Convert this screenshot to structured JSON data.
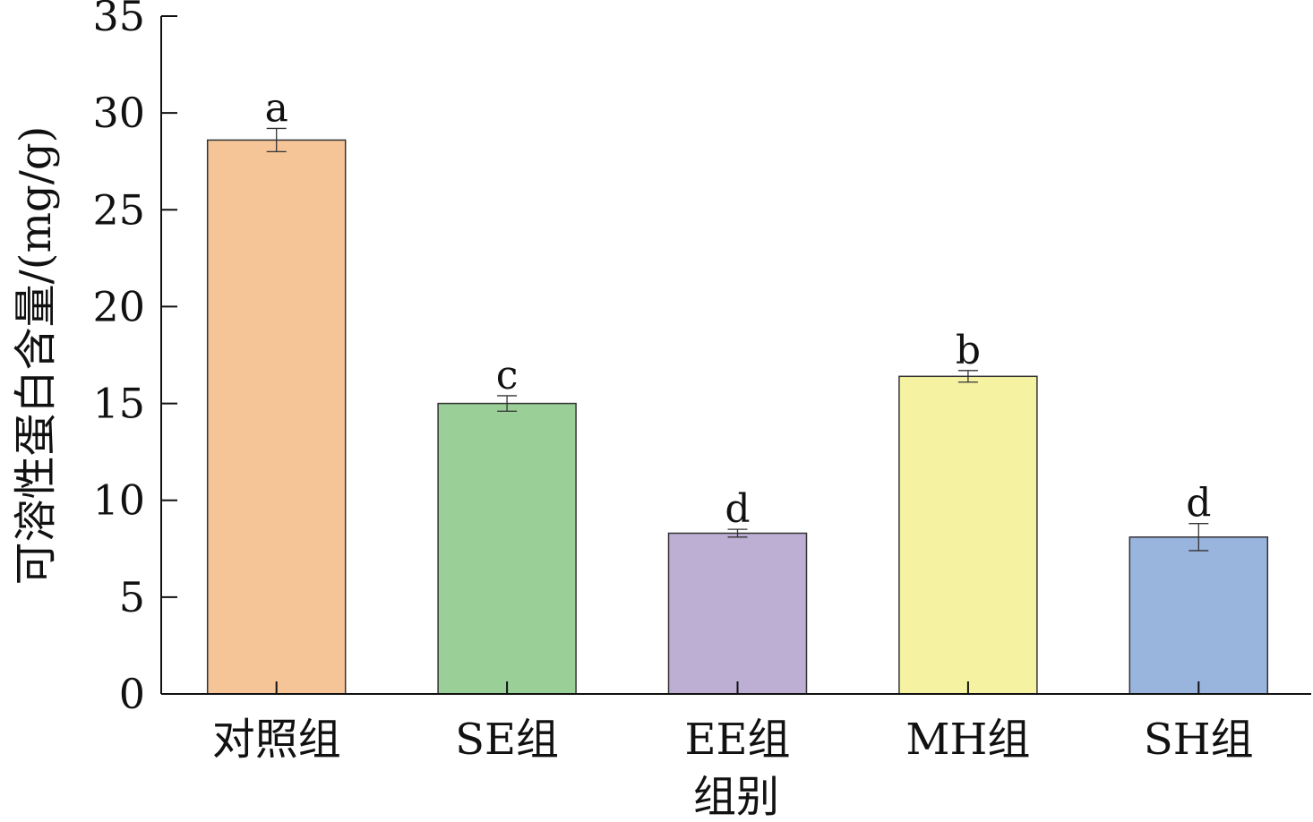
{
  "chart_data": {
    "type": "bar",
    "title": "",
    "xlabel": "组别",
    "ylabel": "可溶性蛋白含量/(mg/g)",
    "ylim": [
      0,
      35
    ],
    "yticks": [
      0,
      5,
      10,
      15,
      20,
      25,
      30,
      35
    ],
    "categories": [
      "对照组",
      "SE组",
      "EE组",
      "MH组",
      "SH组"
    ],
    "values": [
      28.6,
      15.0,
      8.3,
      16.4,
      8.1
    ],
    "errors": [
      0.6,
      0.4,
      0.2,
      0.3,
      0.7
    ],
    "significance": [
      "a",
      "c",
      "d",
      "b",
      "d"
    ],
    "colors": [
      "#f5c597",
      "#9acf98",
      "#bdaed3",
      "#f5f2a2",
      "#99b4dd"
    ],
    "grid": false,
    "legend": "none"
  }
}
